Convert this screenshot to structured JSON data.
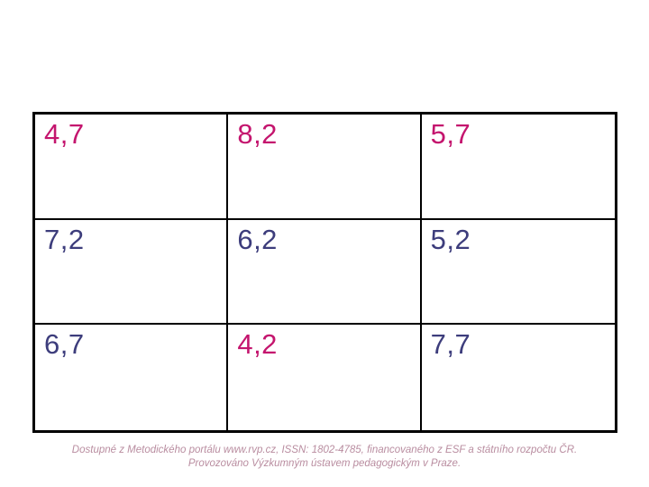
{
  "table": {
    "rows": [
      {
        "cells": [
          {
            "value": "4,7",
            "color": "magenta"
          },
          {
            "value": "8,2",
            "color": "magenta"
          },
          {
            "value": "5,7",
            "color": "magenta"
          }
        ]
      },
      {
        "cells": [
          {
            "value": "7,2",
            "color": "navy"
          },
          {
            "value": "6,2",
            "color": "navy"
          },
          {
            "value": "5,2",
            "color": "navy"
          }
        ]
      },
      {
        "cells": [
          {
            "value": "6,7",
            "color": "navy"
          },
          {
            "value": "4,2",
            "color": "magenta"
          },
          {
            "value": "7,7",
            "color": "navy"
          }
        ]
      }
    ]
  },
  "footer": {
    "line1": "Dostupné z Metodického portálu www.rvp.cz, ISSN: 1802-4785, financovaného z ESF a státního rozpočtu ČR.",
    "line2": "Provozováno Výzkumným ústavem pedagogickým v Praze."
  },
  "colors": {
    "magenta": "#c4156e",
    "navy": "#3d3d7c",
    "footer": "#b98da0",
    "border": "#000000",
    "background": "#ffffff"
  }
}
